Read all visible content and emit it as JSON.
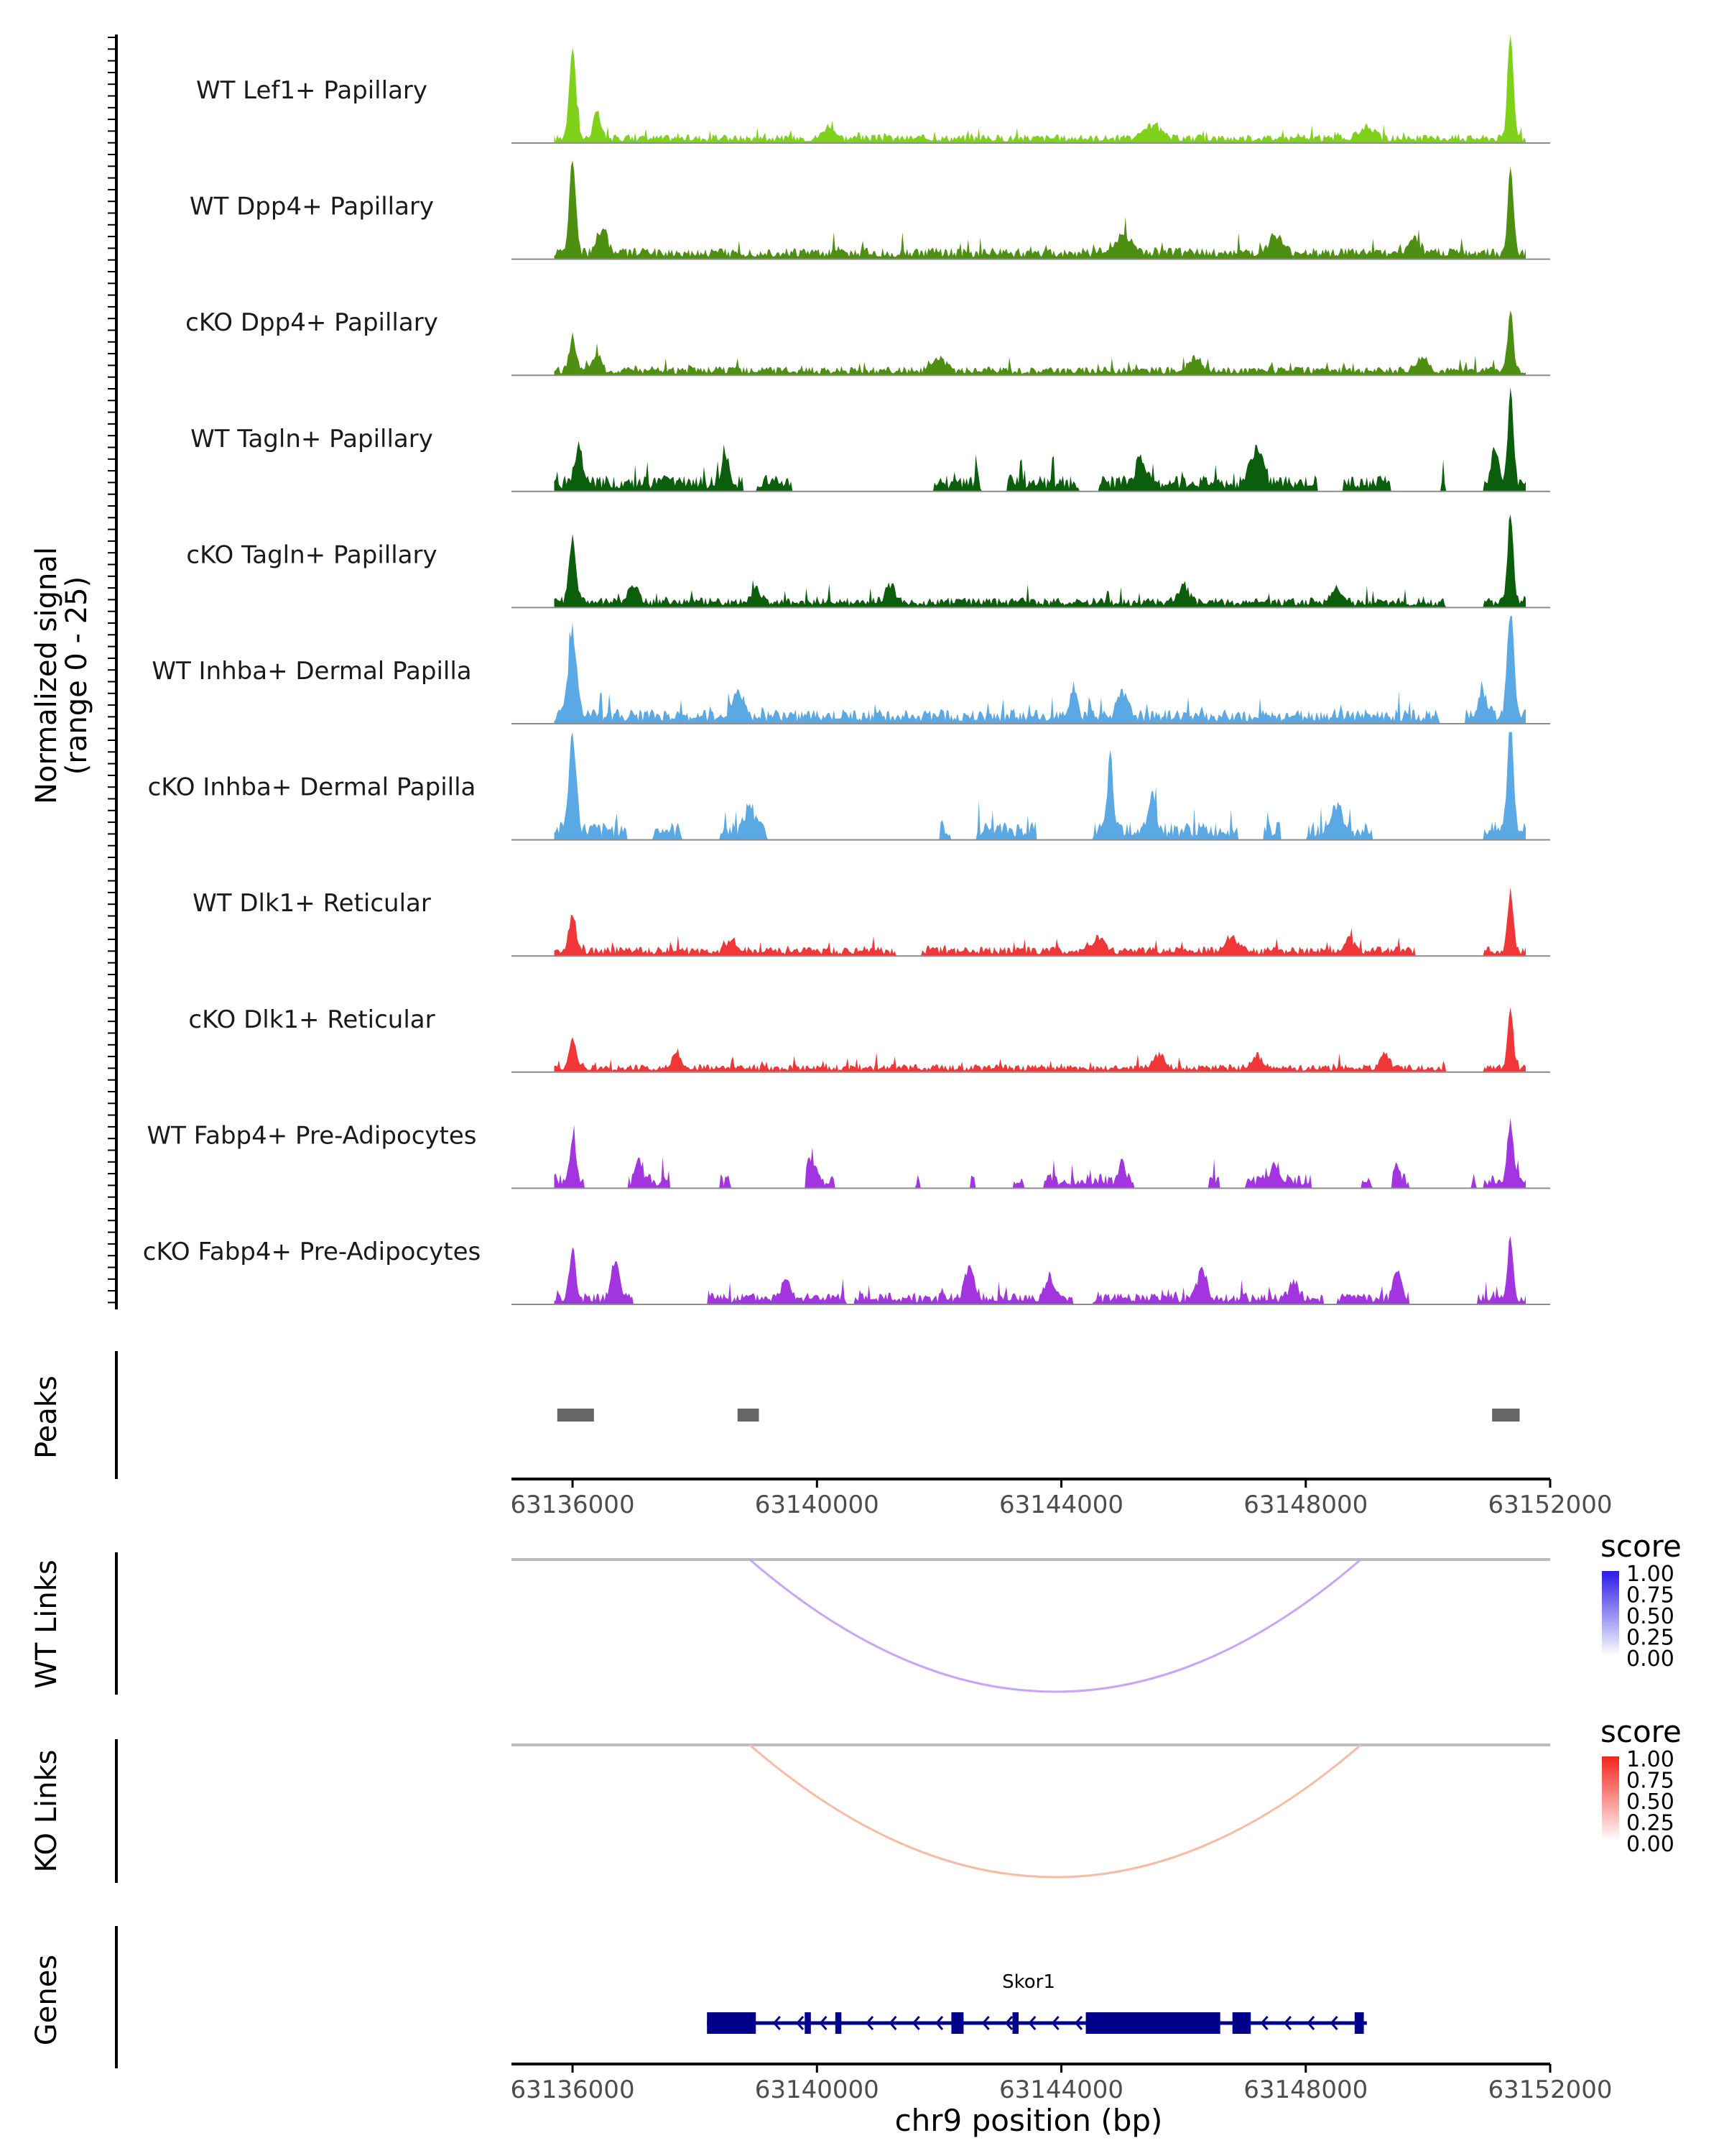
{
  "chart_data": {
    "type": "area",
    "title": "",
    "region": "chr9",
    "xlabel": "chr9 position (bp)",
    "xlim": [
      63135000,
      63152000
    ],
    "x_ticks": [
      63136000,
      63140000,
      63144000,
      63148000,
      63152000
    ],
    "x_tick_labels": [
      "63136000",
      "63140000",
      "63144000",
      "63148000",
      "63152000"
    ],
    "coverage": {
      "ylabel_line1": "Normalized signal",
      "ylabel_line2": "(range 0 - 25)",
      "ylim": [
        0,
        25
      ],
      "tracks": [
        {
          "name": "WT Lef1+ Papillary",
          "color": "#7fd11a",
          "peaks": [
            [
              63136000,
              21,
              55
            ],
            [
              63151350,
              25,
              45
            ],
            [
              63136400,
              6,
              60
            ],
            [
              63140200,
              3,
              90
            ],
            [
              63145500,
              3,
              120
            ],
            [
              63149000,
              2.8,
              110
            ]
          ],
          "bg": 1.2,
          "gaps": []
        },
        {
          "name": "WT Dpp4+ Papillary",
          "color": "#4d8f10",
          "peaks": [
            [
              63136000,
              21,
              55
            ],
            [
              63151350,
              20,
              45
            ],
            [
              63136500,
              6,
              70
            ],
            [
              63145000,
              4,
              140
            ],
            [
              63147500,
              4,
              100
            ],
            [
              63149800,
              3,
              80
            ]
          ],
          "bg": 1.6,
          "gaps": []
        },
        {
          "name": "cKO Dpp4+ Papillary",
          "color": "#4d8f10",
          "peaks": [
            [
              63136000,
              7,
              55
            ],
            [
              63151350,
              14,
              45
            ],
            [
              63136400,
              4,
              60
            ],
            [
              63142000,
              3,
              100
            ],
            [
              63146200,
              3,
              100
            ],
            [
              63149900,
              3,
              100
            ]
          ],
          "bg": 1.2,
          "gaps": []
        },
        {
          "name": "WT Tagln+ Papillary",
          "color": "#0b5e0b",
          "peaks": [
            [
              63136100,
              8,
              60
            ],
            [
              63138500,
              6,
              60
            ],
            [
              63143000,
              5,
              80
            ],
            [
              63145300,
              6,
              80
            ],
            [
              63147200,
              8,
              100
            ],
            [
              63151350,
              21,
              45
            ],
            [
              63151100,
              8,
              60
            ]
          ],
          "bg": 2.2,
          "gaps": [
            [
              63138800,
              63139000
            ],
            [
              63139600,
              63141900
            ],
            [
              63142700,
              63143100
            ],
            [
              63144300,
              63144600
            ],
            [
              63148200,
              63148600
            ],
            [
              63149400,
              63150200
            ],
            [
              63150300,
              63150900
            ]
          ]
        },
        {
          "name": "cKO Tagln+ Papillary",
          "color": "#0b5e0b",
          "peaks": [
            [
              63136000,
              15,
              55
            ],
            [
              63151350,
              21,
              45
            ],
            [
              63137000,
              4,
              80
            ],
            [
              63139000,
              3,
              80
            ],
            [
              63141200,
              4,
              80
            ],
            [
              63146000,
              4,
              80
            ],
            [
              63148500,
              3,
              80
            ]
          ],
          "bg": 1.4,
          "gaps": [
            [
              63150300,
              63150900
            ]
          ]
        },
        {
          "name": "WT Inhba+ Dermal Papilla",
          "color": "#5aa8e4",
          "peaks": [
            [
              63136000,
              19,
              70
            ],
            [
              63138700,
              6,
              90
            ],
            [
              63144200,
              6,
              60
            ],
            [
              63145000,
              5,
              80
            ],
            [
              63151350,
              25,
              55
            ],
            [
              63150900,
              5,
              80
            ]
          ],
          "bg": 2.0,
          "gaps": [
            [
              63150200,
              63150600
            ]
          ]
        },
        {
          "name": "cKO Inhba+ Dermal Papilla",
          "color": "#5aa8e4",
          "peaks": [
            [
              63136000,
              22,
              60
            ],
            [
              63138900,
              6,
              70
            ],
            [
              63144800,
              17,
              45
            ],
            [
              63145500,
              9,
              50
            ],
            [
              63148500,
              6,
              80
            ],
            [
              63151350,
              25,
              50
            ],
            [
              63142500,
              5,
              70
            ]
          ],
          "bg": 2.5,
          "gaps": [
            [
              63136900,
              63137300
            ],
            [
              63137800,
              63138400
            ],
            [
              63139200,
              63142000
            ],
            [
              63142200,
              63142600
            ],
            [
              63143600,
              63144500
            ],
            [
              63146900,
              63147300
            ],
            [
              63147600,
              63148000
            ],
            [
              63149100,
              63150900
            ]
          ]
        },
        {
          "name": "WT Dlk1+ Reticular",
          "color": "#f03636",
          "peaks": [
            [
              63136000,
              9,
              55
            ],
            [
              63151350,
              14,
              45
            ],
            [
              63138600,
              3,
              80
            ],
            [
              63144600,
              3,
              100
            ],
            [
              63146800,
              3,
              100
            ],
            [
              63148700,
              3,
              80
            ]
          ],
          "bg": 1.3,
          "gaps": [
            [
              63141300,
              63141700
            ],
            [
              63149800,
              63150900
            ]
          ]
        },
        {
          "name": "cKO Dlk1+ Reticular",
          "color": "#f03636",
          "peaks": [
            [
              63136000,
              7,
              55
            ],
            [
              63151350,
              14,
              45
            ],
            [
              63137700,
              3,
              70
            ],
            [
              63145600,
              3,
              100
            ],
            [
              63147200,
              3,
              80
            ],
            [
              63149300,
              3,
              70
            ]
          ],
          "bg": 1.1,
          "gaps": [
            [
              63150300,
              63150900
            ]
          ]
        },
        {
          "name": "WT Fabp4+ Pre-Adipocytes",
          "color": "#a235e0",
          "peaks": [
            [
              63136000,
              10,
              45
            ],
            [
              63137100,
              5,
              50
            ],
            [
              63139900,
              5,
              60
            ],
            [
              63145000,
              4,
              60
            ],
            [
              63147500,
              4,
              70
            ],
            [
              63151350,
              13,
              50
            ],
            [
              63149500,
              3,
              60
            ]
          ],
          "bg": 2.0,
          "gaps": [
            [
              63136200,
              63136900
            ],
            [
              63137600,
              63138400
            ],
            [
              63138600,
              63139800
            ],
            [
              63140300,
              63141600
            ],
            [
              63141700,
              63142500
            ],
            [
              63142600,
              63143200
            ],
            [
              63143400,
              63143700
            ],
            [
              63145200,
              63146400
            ],
            [
              63146600,
              63147000
            ],
            [
              63148100,
              63148900
            ],
            [
              63149100,
              63149400
            ],
            [
              63149700,
              63150700
            ],
            [
              63150800,
              63150900
            ]
          ]
        },
        {
          "name": "cKO Fabp4+ Pre-Adipocytes",
          "color": "#a235e0",
          "peaks": [
            [
              63136000,
              12,
              50
            ],
            [
              63136700,
              9,
              60
            ],
            [
              63139500,
              5,
              70
            ],
            [
              63142500,
              7,
              80
            ],
            [
              63146300,
              7,
              70
            ],
            [
              63149500,
              7,
              60
            ],
            [
              63151350,
              14,
              45
            ],
            [
              63143800,
              5,
              70
            ],
            [
              63147800,
              4,
              70
            ]
          ],
          "bg": 1.6,
          "gaps": [
            [
              63137000,
              63138200
            ],
            [
              63140500,
              63140600
            ],
            [
              63144200,
              63144500
            ],
            [
              63148300,
              63148500
            ],
            [
              63149700,
              63150800
            ]
          ]
        }
      ]
    },
    "peaks_track": {
      "label": "Peaks",
      "intervals": [
        [
          63135750,
          63136350
        ],
        [
          63138700,
          63139050
        ],
        [
          63151050,
          63151500
        ]
      ],
      "color": "#666666"
    },
    "links": [
      {
        "label": "WT Links",
        "from": 63138900,
        "to": 63148900,
        "score": 0.35,
        "color": "#c9a5f5",
        "legend": {
          "title": "score",
          "labels": [
            "1.00",
            "0.75",
            "0.50",
            "0.25",
            "0.00"
          ],
          "low": "#ffffff",
          "high": "#2b1ae6"
        }
      },
      {
        "label": "KO Links",
        "from": 63138900,
        "to": 63148900,
        "score": 0.3,
        "color": "#f7bba6",
        "legend": {
          "title": "score",
          "labels": [
            "1.00",
            "0.75",
            "0.50",
            "0.25",
            "0.00"
          ],
          "low": "#ffffff",
          "high": "#f0261c"
        }
      }
    ],
    "genes": {
      "label": "Genes",
      "gene": "Skor1",
      "start": 63138200,
      "end": 63149000,
      "color": "#00008b",
      "exons": [
        [
          63138200,
          63139000
        ],
        [
          63139800,
          63139900
        ],
        [
          63140300,
          63140400
        ],
        [
          63142200,
          63142400
        ],
        [
          63143200,
          63143300
        ],
        [
          63144400,
          63146600
        ],
        [
          63146800,
          63147100
        ],
        [
          63148800,
          63148950
        ]
      ]
    }
  }
}
